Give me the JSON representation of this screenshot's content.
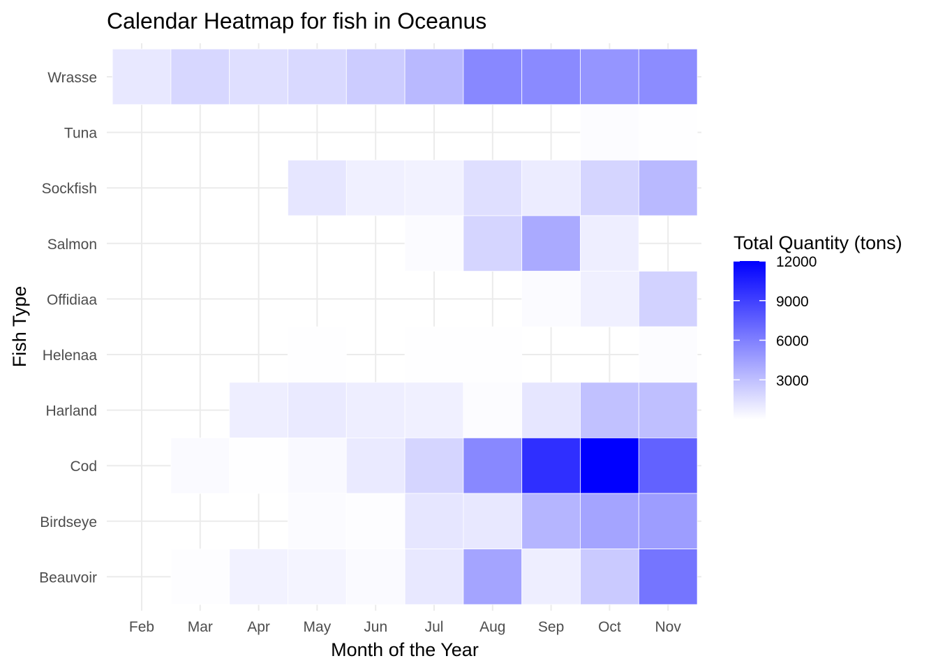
{
  "chart_data": {
    "type": "heatmap",
    "title": "Calendar Heatmap for fish in Oceanus",
    "xlabel": "Month of the Year",
    "ylabel": "Fish Type",
    "x_categories": [
      "Feb",
      "Mar",
      "Apr",
      "May",
      "Jun",
      "Jul",
      "Aug",
      "Sep",
      "Oct",
      "Nov"
    ],
    "y_categories": [
      "Wrasse",
      "Tuna",
      "Sockfish",
      "Salmon",
      "Offidiaa",
      "Helenaa",
      "Harland",
      "Cod",
      "Birdseye",
      "Beauvoir"
    ],
    "values": [
      [
        1100,
        1900,
        1500,
        1800,
        2400,
        3300,
        5600,
        5500,
        5000,
        5400
      ],
      [
        null,
        null,
        null,
        null,
        null,
        null,
        null,
        null,
        150,
        50
      ],
      [
        null,
        null,
        null,
        1200,
        700,
        600,
        1500,
        900,
        2000,
        3300
      ],
      [
        null,
        null,
        null,
        null,
        null,
        200,
        2000,
        4000,
        800,
        null
      ],
      [
        null,
        null,
        null,
        null,
        null,
        null,
        null,
        200,
        700,
        2100
      ],
      [
        null,
        null,
        null,
        50,
        null,
        50,
        50,
        null,
        null,
        150
      ],
      [
        null,
        null,
        800,
        1000,
        800,
        700,
        150,
        1200,
        2900,
        3000
      ],
      [
        null,
        250,
        50,
        300,
        1000,
        2000,
        5600,
        9800,
        12000,
        7400
      ],
      [
        null,
        null,
        null,
        200,
        100,
        1200,
        1100,
        3500,
        4300,
        4600
      ],
      [
        null,
        100,
        600,
        500,
        250,
        1100,
        4300,
        800,
        2500,
        6500
      ]
    ],
    "color_scale": {
      "low": "#ffffff",
      "high": "#0000ff",
      "min": 0,
      "max": 12000
    },
    "legend": {
      "title": "Total Quantity (tons)",
      "ticks": [
        12000,
        9000,
        6000,
        3000
      ],
      "position": "right"
    },
    "grid": true
  }
}
